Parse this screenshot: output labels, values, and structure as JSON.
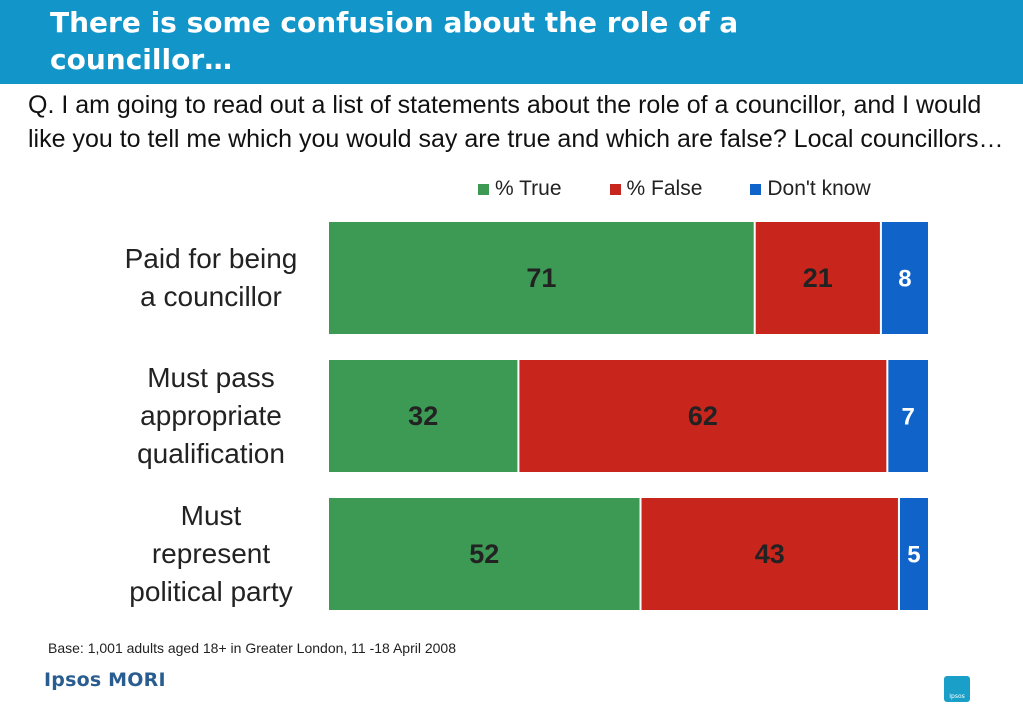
{
  "header": {
    "title_line1": "There is some confusion about the role of a",
    "title_line2": "councillor…"
  },
  "question": "Q. I am going to read out a list of statements about the role of a councillor, and I would like you to tell me which you would say are true and which are false? Local councillors…",
  "footnote": "Base: 1,001 adults aged 18+ in Greater London, 11 -18 April 2008",
  "logo": {
    "text": "Ipsos MORI",
    "badge_text": "Ipsos"
  },
  "colors": {
    "header": "#1295c9",
    "true": "#3d9a55",
    "false": "#c8261c",
    "dont_know": "#0f63c9"
  },
  "chart_data": {
    "type": "bar",
    "orientation": "horizontal",
    "stacked": true,
    "categories": [
      [
        "Paid for being",
        "a councillor"
      ],
      [
        "Must pass",
        "appropriate",
        "qualification"
      ],
      [
        "Must",
        "represent",
        "political party"
      ]
    ],
    "series": [
      {
        "name": "% True",
        "values": [
          71,
          32,
          52
        ],
        "color": "#3d9a55"
      },
      {
        "name": "% False",
        "values": [
          21,
          62,
          43
        ],
        "color": "#c8261c"
      },
      {
        "name": "Don't know",
        "values": [
          8,
          7,
          5
        ],
        "color": "#0f63c9"
      }
    ],
    "legend_position": "top-right",
    "grid": false
  }
}
